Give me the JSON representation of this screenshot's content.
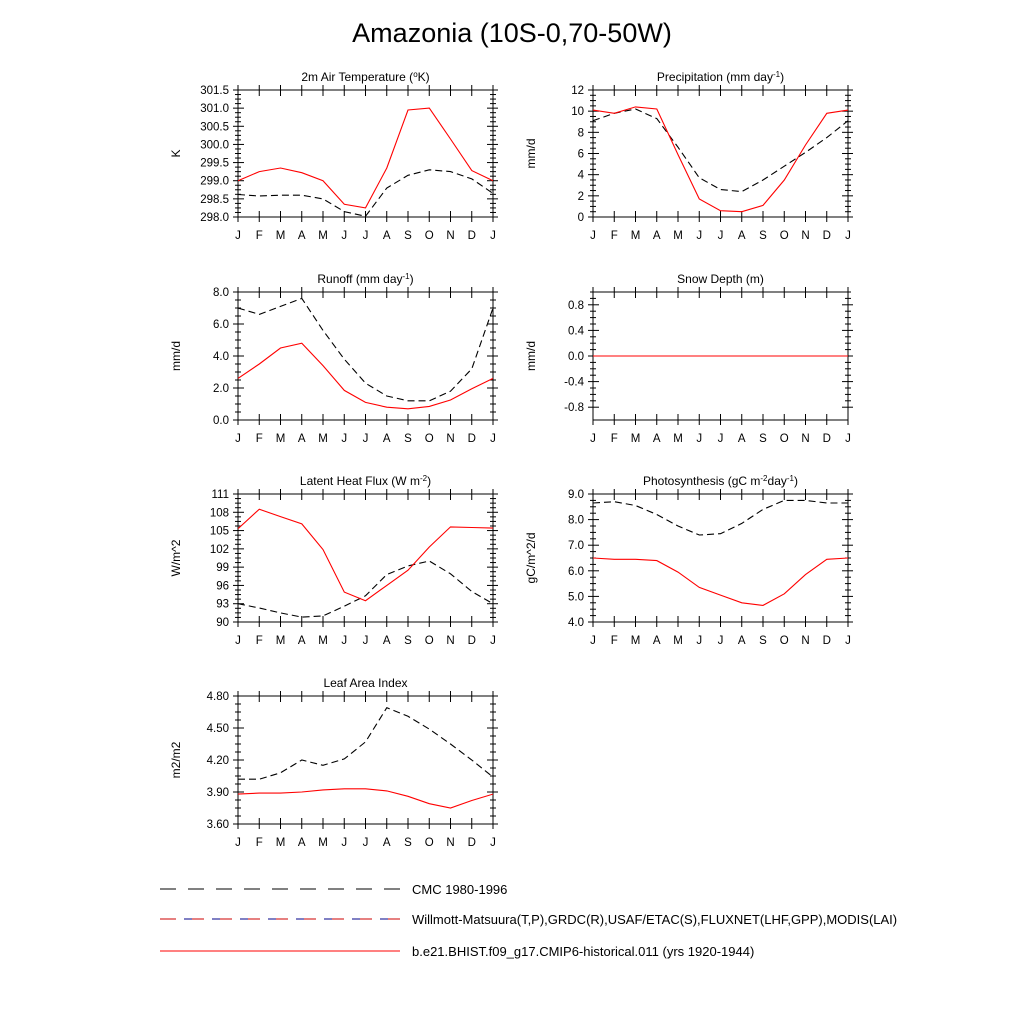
{
  "title": "Amazonia (10S-0,70-50W)",
  "months": [
    "J",
    "F",
    "M",
    "A",
    "M",
    "J",
    "J",
    "A",
    "S",
    "O",
    "N",
    "D",
    "J"
  ],
  "legend": [
    {
      "label": "CMC 1980-1996",
      "style": "dash-black",
      "color": "#000000"
    },
    {
      "label": "Willmott-Matsuura(T,P),GRDC(R),USAF/ETAC(S),FLUXNET(LHF,GPP),MODIS(LAI)",
      "style": "dash-mixed",
      "color": "#000000"
    },
    {
      "label": "b.e21.BHIST.f09_g17.CMIP6-historical.011 (yrs 1920-1944)",
      "style": "solid-red",
      "color": "#ff0000"
    }
  ],
  "chart_data": [
    {
      "type": "line",
      "title": "2m Air Temperature (",
      "title_sup": "o",
      "title_tail": "K)",
      "ylabel": "K",
      "ylim": [
        298.0,
        301.5
      ],
      "yticks": [
        "301.5",
        "301.0",
        "300.5",
        "300.0",
        "299.5",
        "299.0",
        "298.5",
        "298.0"
      ],
      "ytick_values": [
        301.5,
        301.0,
        300.5,
        300.0,
        299.5,
        299.0,
        298.5,
        298.0
      ],
      "series": [
        {
          "style": "dash",
          "color": "#000000",
          "values": [
            298.62,
            298.58,
            298.6,
            298.6,
            298.5,
            298.15,
            298.02,
            298.8,
            299.15,
            299.3,
            299.25,
            299.05,
            298.65
          ]
        },
        {
          "style": "solid",
          "color": "#ff0000",
          "values": [
            299.0,
            299.25,
            299.35,
            299.22,
            299.0,
            298.35,
            298.25,
            299.35,
            300.95,
            301.0,
            300.15,
            299.28,
            299.0
          ]
        }
      ]
    },
    {
      "type": "line",
      "title": "Precipitation (mm day",
      "title_sup": "-1",
      "title_tail": ")",
      "ylabel": "mm/d",
      "ylim": [
        0,
        12
      ],
      "yticks": [
        "12",
        "10",
        "8",
        "6",
        "4",
        "2",
        "0"
      ],
      "ytick_values": [
        12,
        10,
        8,
        6,
        4,
        2,
        0
      ],
      "series": [
        {
          "style": "dash",
          "color": "#000000",
          "values": [
            9.1,
            9.8,
            10.2,
            9.3,
            6.6,
            3.7,
            2.6,
            2.4,
            3.5,
            4.8,
            6.1,
            7.5,
            9.1
          ]
        },
        {
          "style": "solid",
          "color": "#ff0000",
          "values": [
            10.1,
            9.8,
            10.4,
            10.2,
            5.9,
            1.7,
            0.6,
            0.5,
            1.1,
            3.5,
            6.8,
            9.8,
            10.1
          ]
        }
      ]
    },
    {
      "type": "line",
      "title": "Runoff (mm day",
      "title_sup": "-1",
      "title_tail": ")",
      "ylabel": "mm/d",
      "ylim": [
        0,
        8
      ],
      "yticks": [
        "8.0",
        "6.0",
        "4.0",
        "2.0",
        "0.0"
      ],
      "ytick_values": [
        8,
        6,
        4,
        2,
        0
      ],
      "series": [
        {
          "style": "dash",
          "color": "#000000",
          "values": [
            7.0,
            6.6,
            7.1,
            7.6,
            5.6,
            3.8,
            2.3,
            1.5,
            1.2,
            1.2,
            1.8,
            3.2,
            7.0
          ]
        },
        {
          "style": "solid",
          "color": "#ff0000",
          "values": [
            2.6,
            3.5,
            4.5,
            4.8,
            3.4,
            1.85,
            1.1,
            0.8,
            0.7,
            0.85,
            1.25,
            1.95,
            2.6
          ]
        }
      ]
    },
    {
      "type": "line",
      "title": "Snow Depth (m)",
      "title_sup": "",
      "title_tail": "",
      "ylabel": "mm/d",
      "ylim": [
        -1.0,
        1.0
      ],
      "yticks": [
        "0.8",
        "0.4",
        "0.0",
        "-0.4",
        "-0.8"
      ],
      "ytick_values": [
        0.8,
        0.4,
        0.0,
        -0.4,
        -0.8
      ],
      "series": [
        {
          "style": "dash",
          "color": "#000000",
          "values": [
            0,
            0,
            0,
            0,
            0,
            0,
            0,
            0,
            0,
            0,
            0,
            0,
            0
          ]
        },
        {
          "style": "solid",
          "color": "#ff0000",
          "values": [
            0,
            0,
            0,
            0,
            0,
            0,
            0,
            0,
            0,
            0,
            0,
            0,
            0
          ]
        }
      ]
    },
    {
      "type": "line",
      "title": "Latent Heat Flux (W m",
      "title_sup": "-2",
      "title_tail": ")",
      "ylabel": "W/m^2",
      "ylim": [
        90,
        111
      ],
      "yticks": [
        "111",
        "108",
        "105",
        "102",
        "99",
        "96",
        "93",
        "90"
      ],
      "ytick_values": [
        111,
        108,
        105,
        102,
        99,
        96,
        93,
        90
      ],
      "series": [
        {
          "style": "dash",
          "color": "#000000",
          "values": [
            93.0,
            92.3,
            91.5,
            90.8,
            91.0,
            92.6,
            94.3,
            97.8,
            99.2,
            100.0,
            97.9,
            95.0,
            93.0
          ]
        },
        {
          "style": "solid",
          "color": "#ff0000",
          "values": [
            105.3,
            108.5,
            107.3,
            106.1,
            101.9,
            94.9,
            93.5,
            96.0,
            98.5,
            102.3,
            105.6,
            105.5,
            105.4
          ]
        }
      ]
    },
    {
      "type": "line",
      "title": "Photosynthesis (gC m",
      "title_sup": "-2",
      "title_mid": "day",
      "title_sup2": "-1",
      "title_tail": ")",
      "ylabel": "gC/m^2/d",
      "ylim": [
        4.0,
        9.0
      ],
      "yticks": [
        "9.0",
        "8.0",
        "7.0",
        "6.0",
        "5.0",
        "4.0"
      ],
      "ytick_values": [
        9,
        8,
        7,
        6,
        5,
        4
      ],
      "series": [
        {
          "style": "dash",
          "color": "#000000",
          "values": [
            8.65,
            8.7,
            8.55,
            8.2,
            7.75,
            7.4,
            7.45,
            7.85,
            8.4,
            8.75,
            8.75,
            8.65,
            8.65
          ]
        },
        {
          "style": "solid",
          "color": "#ff0000",
          "values": [
            6.5,
            6.45,
            6.45,
            6.4,
            5.95,
            5.35,
            5.05,
            4.75,
            4.65,
            5.1,
            5.85,
            6.45,
            6.5
          ]
        }
      ]
    },
    {
      "type": "line",
      "title": "Leaf Area Index",
      "title_sup": "",
      "title_tail": "",
      "ylabel": "m2/m2",
      "ylim": [
        3.6,
        4.8
      ],
      "yticks": [
        "4.80",
        "4.50",
        "4.20",
        "3.90",
        "3.60"
      ],
      "ytick_values": [
        4.8,
        4.5,
        4.2,
        3.9,
        3.6
      ],
      "series": [
        {
          "style": "dash",
          "color": "#000000",
          "values": [
            4.02,
            4.02,
            4.08,
            4.2,
            4.15,
            4.21,
            4.37,
            4.69,
            4.61,
            4.49,
            4.35,
            4.2,
            4.04
          ]
        },
        {
          "style": "solid",
          "color": "#ff0000",
          "values": [
            3.88,
            3.89,
            3.89,
            3.9,
            3.92,
            3.93,
            3.93,
            3.91,
            3.86,
            3.79,
            3.75,
            3.82,
            3.88
          ]
        }
      ]
    }
  ]
}
